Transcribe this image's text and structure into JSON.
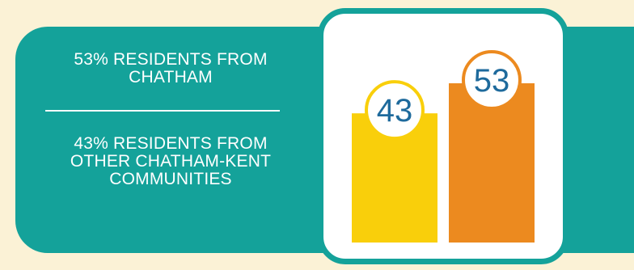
{
  "left_panel": {
    "stat_1": "53% RESIDENTS FROM CHATHAM",
    "stat_2": "43% RESIDENTS FROM OTHER CHATHAM-KENT COMMUNITIES"
  },
  "colors": {
    "teal": "#14a29a",
    "yellow": "#f9cf0b",
    "orange": "#ec8a1f",
    "label_blue": "#1e6a9c",
    "background": "#fbf2d6"
  },
  "chart_data": {
    "type": "bar",
    "categories": [
      "",
      ""
    ],
    "values": [
      43,
      53
    ],
    "ylim": [
      0,
      60
    ],
    "grid": false,
    "data_labels": [
      "43",
      "53"
    ],
    "bar_colors": [
      "#f9cf0b",
      "#ec8a1f"
    ]
  }
}
